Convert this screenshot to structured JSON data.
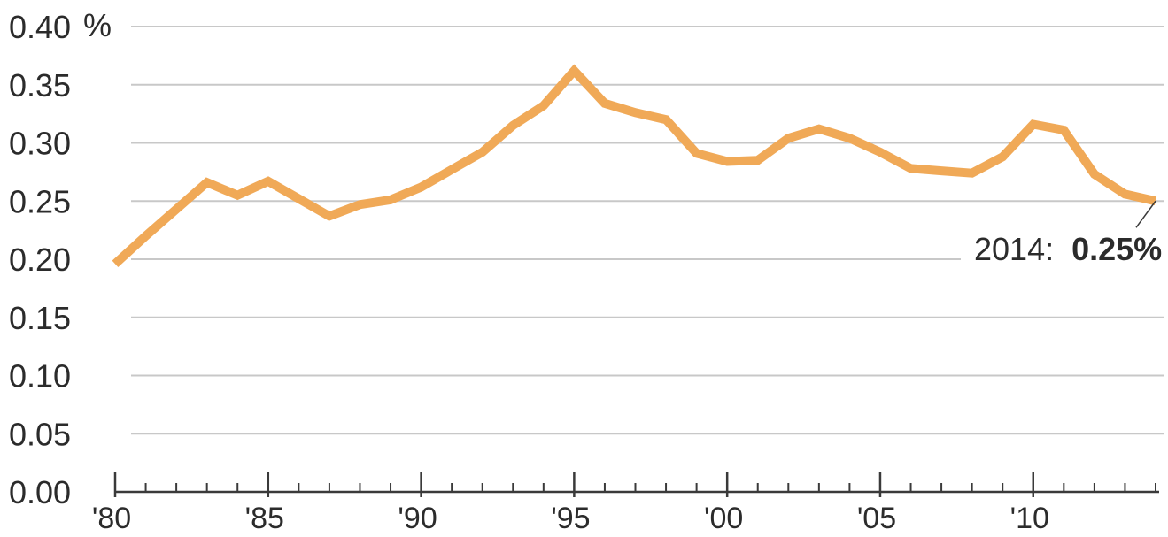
{
  "chart_data": {
    "type": "line",
    "title": "",
    "xlabel": "",
    "ylabel": "",
    "y_unit": "%",
    "xlim": [
      1980,
      2014
    ],
    "ylim": [
      0,
      0.4
    ],
    "grid": true,
    "line_color": "#f0a957",
    "grid_color": "#c8c8c8",
    "axis_color": "#3a3a3a",
    "y_ticks": [
      {
        "value": 0.0,
        "label": "0.00"
      },
      {
        "value": 0.05,
        "label": "0.05"
      },
      {
        "value": 0.1,
        "label": "0.10"
      },
      {
        "value": 0.15,
        "label": "0.15"
      },
      {
        "value": 0.2,
        "label": "0.20"
      },
      {
        "value": 0.25,
        "label": "0.25"
      },
      {
        "value": 0.3,
        "label": "0.30"
      },
      {
        "value": 0.35,
        "label": "0.35"
      },
      {
        "value": 0.4,
        "label": "0.40"
      }
    ],
    "y_top_unit_label": "%",
    "x_ticks": [
      {
        "value": 1980,
        "label": "'80"
      },
      {
        "value": 1985,
        "label": "'85"
      },
      {
        "value": 1990,
        "label": "'90"
      },
      {
        "value": 1995,
        "label": "'95"
      },
      {
        "value": 2000,
        "label": "'00"
      },
      {
        "value": 2005,
        "label": "'05"
      },
      {
        "value": 2010,
        "label": "'10"
      }
    ],
    "x_minor_ticks": [
      1981,
      1982,
      1983,
      1984,
      1986,
      1987,
      1988,
      1989,
      1991,
      1992,
      1993,
      1994,
      1996,
      1997,
      1998,
      1999,
      2001,
      2002,
      2003,
      2004,
      2006,
      2007,
      2008,
      2009,
      2011,
      2012,
      2013,
      2014
    ],
    "series": [
      {
        "x": [
          1980,
          1981,
          1982,
          1983,
          1984,
          1985,
          1986,
          1987,
          1988,
          1989,
          1990,
          1991,
          1992,
          1993,
          1994,
          1995,
          1996,
          1997,
          1998,
          1999,
          2000,
          2001,
          2002,
          2003,
          2004,
          2005,
          2006,
          2007,
          2008,
          2009,
          2010,
          2011,
          2012,
          2013,
          2014
        ],
        "values": [
          0.196,
          0.22,
          0.243,
          0.266,
          0.255,
          0.267,
          0.252,
          0.237,
          0.247,
          0.251,
          0.262,
          0.277,
          0.292,
          0.315,
          0.332,
          0.362,
          0.334,
          0.326,
          0.32,
          0.291,
          0.284,
          0.285,
          0.304,
          0.312,
          0.304,
          0.292,
          0.278,
          0.276,
          0.274,
          0.288,
          0.316,
          0.311,
          0.273,
          0.256,
          0.25
        ]
      }
    ],
    "annotation": {
      "year_label": "2014:",
      "value_label": "0.25%",
      "x": 2014,
      "y": 0.25
    }
  }
}
